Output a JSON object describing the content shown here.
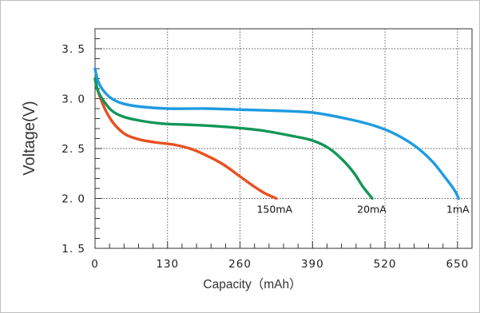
{
  "chart_data": {
    "type": "line",
    "title": "",
    "xlabel": "Capacity（mAh）",
    "ylabel": "Voltage(V)",
    "xlim": [
      0,
      676
    ],
    "ylim": [
      1.5,
      3.7
    ],
    "x_ticks": [
      0,
      130,
      260,
      390,
      520,
      650
    ],
    "x_tick_labels": [
      "0",
      "130",
      "260",
      "390",
      "520",
      "650"
    ],
    "y_ticks": [
      1.5,
      2.0,
      2.5,
      3.0,
      3.5
    ],
    "y_tick_labels": [
      "1. 5",
      "2. 0",
      "2. 5",
      "3. 0",
      "3. 5"
    ],
    "grid": true,
    "series": [
      {
        "name": "150mA",
        "color": "#e8501e",
        "points": [
          [
            0,
            3.2
          ],
          [
            3,
            3.12
          ],
          [
            10,
            3.0
          ],
          [
            20,
            2.87
          ],
          [
            35,
            2.74
          ],
          [
            55,
            2.64
          ],
          [
            80,
            2.59
          ],
          [
            110,
            2.56
          ],
          [
            140,
            2.54
          ],
          [
            170,
            2.5
          ],
          [
            200,
            2.43
          ],
          [
            230,
            2.34
          ],
          [
            260,
            2.22
          ],
          [
            285,
            2.12
          ],
          [
            305,
            2.05
          ],
          [
            325,
            2.0
          ]
        ]
      },
      {
        "name": "20mA",
        "color": "#129657",
        "points": [
          [
            0,
            3.2
          ],
          [
            5,
            3.08
          ],
          [
            15,
            2.98
          ],
          [
            30,
            2.88
          ],
          [
            50,
            2.82
          ],
          [
            80,
            2.78
          ],
          [
            120,
            2.75
          ],
          [
            160,
            2.74
          ],
          [
            200,
            2.73
          ],
          [
            250,
            2.71
          ],
          [
            300,
            2.68
          ],
          [
            350,
            2.63
          ],
          [
            390,
            2.58
          ],
          [
            420,
            2.5
          ],
          [
            445,
            2.38
          ],
          [
            465,
            2.25
          ],
          [
            480,
            2.12
          ],
          [
            490,
            2.05
          ],
          [
            497,
            2.0
          ]
        ]
      },
      {
        "name": "1mA",
        "color": "#1e9be0",
        "points": [
          [
            0,
            3.3
          ],
          [
            5,
            3.18
          ],
          [
            15,
            3.08
          ],
          [
            30,
            3.0
          ],
          [
            50,
            2.95
          ],
          [
            80,
            2.92
          ],
          [
            130,
            2.9
          ],
          [
            200,
            2.9
          ],
          [
            260,
            2.89
          ],
          [
            320,
            2.88
          ],
          [
            390,
            2.86
          ],
          [
            450,
            2.8
          ],
          [
            500,
            2.73
          ],
          [
            540,
            2.64
          ],
          [
            575,
            2.52
          ],
          [
            605,
            2.37
          ],
          [
            625,
            2.23
          ],
          [
            640,
            2.12
          ],
          [
            648,
            2.05
          ],
          [
            652,
            2.0
          ]
        ]
      }
    ],
    "series_labels": [
      {
        "text": "150mA",
        "x": 290,
        "y": 1.97
      },
      {
        "text": "20mA",
        "x": 470,
        "y": 1.97
      },
      {
        "text": "1mA",
        "x": 630,
        "y": 1.97
      }
    ]
  }
}
